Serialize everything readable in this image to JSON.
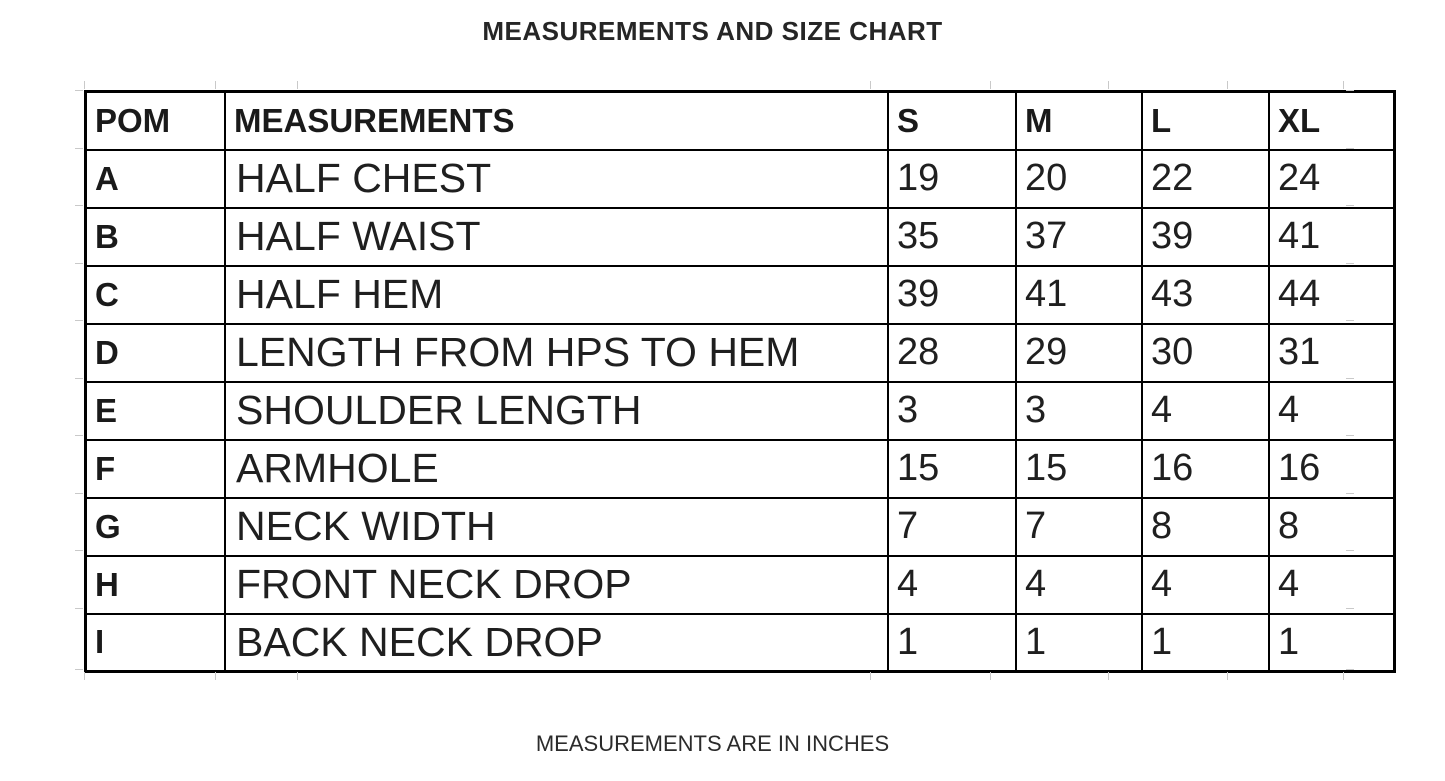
{
  "page": {
    "title": "MEASUREMENTS AND SIZE CHART",
    "footer": "MEASUREMENTS ARE IN INCHES"
  },
  "colors": {
    "background": "#ffffff",
    "text": "#1f1f1f",
    "table_border": "#000000",
    "gridline_stub": "#c9c9c9"
  },
  "table": {
    "columns": [
      "POM",
      "MEASUREMENTS",
      "S",
      "M",
      "L",
      "XL"
    ],
    "rows": [
      {
        "pom": "A",
        "name": "HALF CHEST",
        "s": "19",
        "m": "20",
        "l": "22",
        "xl": "24"
      },
      {
        "pom": "B",
        "name": "HALF WAIST",
        "s": "35",
        "m": "37",
        "l": "39",
        "xl": "41"
      },
      {
        "pom": "C",
        "name": "HALF HEM",
        "s": "39",
        "m": "41",
        "l": "43",
        "xl": "44"
      },
      {
        "pom": "D",
        "name": "LENGTH FROM HPS TO HEM",
        "s": "28",
        "m": "29",
        "l": "30",
        "xl": "31"
      },
      {
        "pom": "E",
        "name": "SHOULDER LENGTH",
        "s": "3",
        "m": "3",
        "l": "4",
        "xl": "4"
      },
      {
        "pom": "F",
        "name": "ARMHOLE",
        "s": "15",
        "m": "15",
        "l": "16",
        "xl": "16"
      },
      {
        "pom": "G",
        "name": "NECK WIDTH",
        "s": "7",
        "m": "7",
        "l": "8",
        "xl": "8"
      },
      {
        "pom": "H",
        "name": "FRONT NECK DROP",
        "s": "4",
        "m": "4",
        "l": "4",
        "xl": "4"
      },
      {
        "pom": "I",
        "name": "BACK NECK DROP",
        "s": "1",
        "m": "1",
        "l": "1",
        "xl": "1"
      }
    ]
  }
}
